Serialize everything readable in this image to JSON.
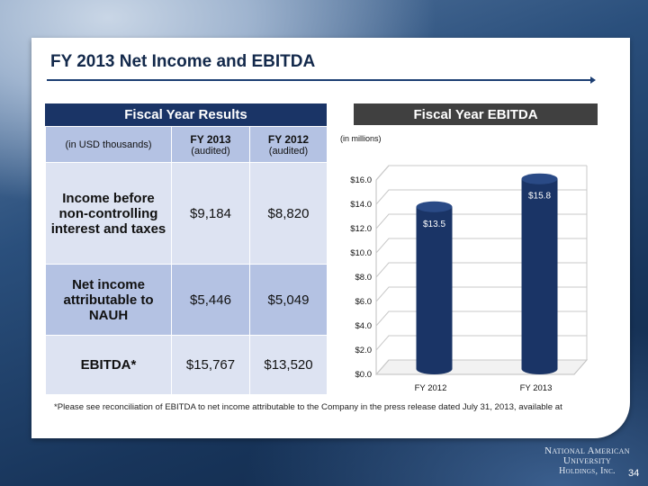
{
  "title": "FY 2013 Net Income and EBITDA",
  "table": {
    "heading": "Fiscal Year Results",
    "units_label": "(in USD thousands)",
    "columns": [
      {
        "year": "FY 2013",
        "note": "(audited)"
      },
      {
        "year": "FY 2012",
        "note": "(audited)"
      }
    ],
    "rows": [
      {
        "label": "Income before non-controlling interest and taxes",
        "fy2013": "$9,184",
        "fy2012": "$8,820"
      },
      {
        "label": "Net income attributable to NAUH",
        "fy2013": "$5,446",
        "fy2012": "$5,049"
      },
      {
        "label": "EBITDA*",
        "fy2013": "$15,767",
        "fy2012": "$13,520"
      }
    ]
  },
  "chart_heading": "Fiscal Year EBITDA",
  "chart_data": {
    "type": "bar",
    "units_label": "(in millions)",
    "categories": [
      "FY 2012",
      "FY 2013"
    ],
    "values": [
      13.5,
      15.8
    ],
    "data_labels": [
      "$13.5",
      "$15.8"
    ],
    "y_tick_labels": [
      "$0.0",
      "$2.0",
      "$4.0",
      "$6.0",
      "$8.0",
      "$10.0",
      "$12.0",
      "$14.0",
      "$16.0"
    ],
    "ylim": [
      0,
      16
    ],
    "grid": true,
    "bar_color": "#1a3466"
  },
  "footnote": "*Please see reconciliation of EBITDA to net income attributable to the Company in the press release dated July 31, 2013, available at",
  "logo": {
    "line1": "National American University",
    "line2": "Holdings, Inc."
  },
  "page_number": "34"
}
